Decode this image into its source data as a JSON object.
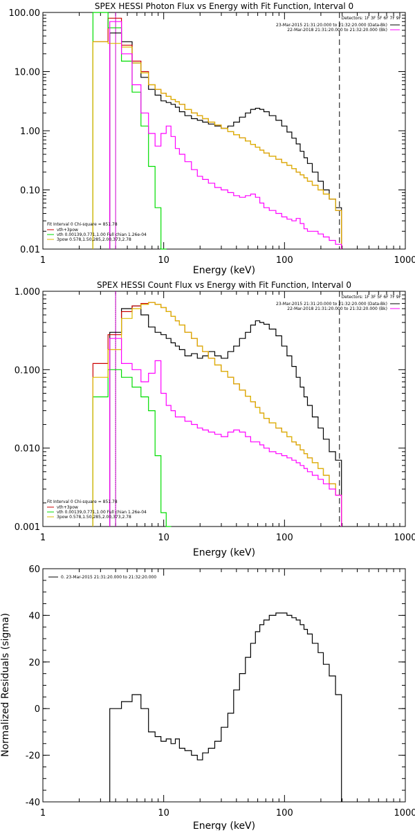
{
  "chart_data": [
    {
      "type": "line",
      "title": "SPEX HESSI Photon Flux vs Energy with Fit Function, Interval 0",
      "xlabel": "Energy (keV)",
      "ylabel": "",
      "xscale": "log",
      "yscale": "log",
      "xlim": [
        1,
        1000
      ],
      "ylim": [
        0.01,
        100
      ],
      "grid": false,
      "x_ticks": [
        "1",
        "10",
        "100",
        "1000"
      ],
      "y_ticks": [
        "100.00",
        "10.00",
        "1.00",
        "0.10",
        "0.01"
      ],
      "legend_header": "Detectors: 1F 3F 5F 6F 7F 9F",
      "legend_right": [
        {
          "text": "23-Mar-2015 21:31:20.000 to 21:32:20.000 (Data-Bk)",
          "color": "#000000"
        },
        {
          "text": "22-Mar-2018 21:31:20.000 to 21:32:20.000 (Bk)",
          "color": "#ff00ff"
        }
      ],
      "legend_left_header": "Fit Interval 0   Chi-square = 851.78",
      "legend_left": [
        {
          "text": "vth+3pow",
          "color": "#cc0000"
        },
        {
          "text": "vth 0.00139,0.771,1.00   Full chian 1.26e-04",
          "color": "#00dd00"
        },
        {
          "text": "3pow 0.578,1.50,285,2.00,373,2.78",
          "color": "#ddbb00"
        }
      ],
      "vlines": [
        {
          "x": 4,
          "color": "#cc00cc",
          "style": "solid"
        },
        {
          "x": 285,
          "color": "#000000",
          "style": "dashed"
        }
      ],
      "series": [
        {
          "name": "Data-Bk",
          "color": "#000000",
          "x": [
            4,
            5,
            6,
            7,
            8,
            9,
            10,
            11,
            12,
            13,
            14,
            16,
            18,
            20,
            22,
            25,
            28,
            32,
            36,
            40,
            45,
            50,
            55,
            60,
            65,
            70,
            80,
            90,
            100,
            110,
            120,
            130,
            140,
            150,
            160,
            180,
            200,
            220,
            250,
            280
          ],
          "values": [
            45,
            32,
            14,
            8,
            5,
            4,
            3.2,
            3,
            2.8,
            2.5,
            2.1,
            1.8,
            1.6,
            1.5,
            1.4,
            1.3,
            1.2,
            1.1,
            1.2,
            1.4,
            1.7,
            2,
            2.3,
            2.4,
            2.3,
            2.1,
            1.8,
            1.5,
            1.2,
            0.95,
            0.75,
            0.6,
            0.45,
            0.35,
            0.28,
            0.2,
            0.14,
            0.1,
            0.07,
            0.05
          ]
        },
        {
          "name": "vth+3pow",
          "color": "#cc0000",
          "x": [
            3,
            4,
            5,
            6,
            7,
            8,
            9,
            10,
            11,
            12,
            13,
            14,
            16,
            18,
            20,
            22,
            25,
            28,
            32,
            36,
            40,
            45,
            50,
            55,
            60,
            65,
            70,
            80,
            90,
            100,
            110,
            120,
            130,
            140,
            150,
            160,
            180,
            200,
            220,
            250,
            280
          ],
          "values": [
            32,
            80,
            28,
            15,
            10,
            6,
            5,
            4.3,
            3.8,
            3.4,
            3.1,
            2.8,
            2.3,
            2,
            1.8,
            1.6,
            1.4,
            1.25,
            1.1,
            0.97,
            0.86,
            0.76,
            0.67,
            0.59,
            0.53,
            0.47,
            0.42,
            0.37,
            0.33,
            0.29,
            0.26,
            0.23,
            0.2,
            0.18,
            0.16,
            0.14,
            0.12,
            0.1,
            0.085,
            0.07,
            0.045
          ]
        },
        {
          "name": "vth",
          "color": "#00dd00",
          "x": [
            3,
            4,
            5,
            6,
            7,
            8,
            9,
            10
          ],
          "values": [
            100,
            55,
            15,
            4.5,
            1.2,
            0.25,
            0.05,
            0.01
          ]
        },
        {
          "name": "3pow",
          "color": "#ddbb00",
          "x": [
            3,
            4,
            5,
            6,
            7,
            8,
            9,
            10,
            11,
            12,
            13,
            14,
            16,
            18,
            20,
            22,
            25,
            28,
            32,
            36,
            40,
            45,
            50,
            55,
            60,
            65,
            70,
            80,
            90,
            100,
            110,
            120,
            130,
            140,
            150,
            160,
            180,
            200,
            220,
            250,
            280
          ],
          "values": [
            32,
            30,
            26,
            14,
            9.5,
            6,
            5,
            4.3,
            3.8,
            3.4,
            3.1,
            2.8,
            2.3,
            2,
            1.8,
            1.6,
            1.4,
            1.25,
            1.1,
            0.97,
            0.86,
            0.76,
            0.67,
            0.59,
            0.53,
            0.47,
            0.42,
            0.37,
            0.33,
            0.29,
            0.26,
            0.23,
            0.2,
            0.18,
            0.16,
            0.14,
            0.12,
            0.1,
            0.085,
            0.07,
            0.045
          ]
        },
        {
          "name": "Bk",
          "color": "#ff00ff",
          "x": [
            4,
            5,
            6,
            7,
            8,
            9,
            10,
            11,
            12,
            13,
            14,
            16,
            18,
            20,
            22,
            25,
            28,
            32,
            36,
            40,
            45,
            50,
            55,
            60,
            65,
            70,
            80,
            90,
            100,
            110,
            120,
            130,
            140,
            150,
            160,
            180,
            200,
            220,
            250,
            280
          ],
          "values": [
            70,
            20,
            6,
            2,
            0.9,
            0.55,
            0.9,
            1.2,
            0.8,
            0.5,
            0.4,
            0.3,
            0.22,
            0.17,
            0.15,
            0.13,
            0.11,
            0.1,
            0.09,
            0.08,
            0.075,
            0.08,
            0.085,
            0.075,
            0.06,
            0.05,
            0.045,
            0.04,
            0.035,
            0.032,
            0.03,
            0.033,
            0.027,
            0.022,
            0.02,
            0.02,
            0.018,
            0.016,
            0.014,
            0.012
          ]
        }
      ]
    },
    {
      "type": "line",
      "title": "SPEX HESSI Count Flux vs Energy with Fit Function, Interval 0",
      "xlabel": "Energy (keV)",
      "ylabel": "",
      "xscale": "log",
      "yscale": "log",
      "xlim": [
        1,
        1000
      ],
      "ylim": [
        0.001,
        1
      ],
      "grid": false,
      "x_ticks": [
        "1",
        "10",
        "100",
        "1000"
      ],
      "y_ticks": [
        "1.000",
        "0.100",
        "0.010",
        "0.001"
      ],
      "legend_header": "Detectors: 1F 3F 5F 6F 7F 9F",
      "legend_right": [
        {
          "text": "23-Mar-2015 21:31:20.000 to 21:32:20.000 (Data-Bk)",
          "color": "#000000"
        },
        {
          "text": "22-Mar-2018 21:31:20.000 to 21:32:20.000 (Bk)",
          "color": "#ff00ff"
        }
      ],
      "legend_left_header": "Fit Interval 0   Chi-square = 851.78",
      "legend_left": [
        {
          "text": "vth+3pow",
          "color": "#cc0000"
        },
        {
          "text": "vth 0.00139,0.771,1.00   Full chian 1.26e-04",
          "color": "#00dd00"
        },
        {
          "text": "3pow 0.578,1.50,285,2.00,373,2.78",
          "color": "#ddbb00"
        }
      ],
      "vlines": [
        {
          "x": 4,
          "color": "#000000",
          "style": "dotted"
        },
        {
          "x": 4,
          "color": "#cc00cc",
          "style": "solid"
        },
        {
          "x": 285,
          "color": "#000000",
          "style": "dashed"
        }
      ],
      "series": [
        {
          "name": "Data-Bk",
          "color": "#000000",
          "x": [
            4,
            5,
            6,
            7,
            8,
            9,
            10,
            11,
            12,
            13,
            14,
            16,
            18,
            20,
            22,
            25,
            28,
            32,
            36,
            40,
            45,
            50,
            55,
            60,
            65,
            70,
            80,
            90,
            100,
            110,
            120,
            130,
            140,
            150,
            160,
            180,
            200,
            220,
            250,
            280
          ],
          "values": [
            0.3,
            0.6,
            0.65,
            0.5,
            0.35,
            0.3,
            0.28,
            0.25,
            0.22,
            0.2,
            0.18,
            0.15,
            0.16,
            0.14,
            0.15,
            0.17,
            0.15,
            0.14,
            0.17,
            0.2,
            0.25,
            0.3,
            0.37,
            0.42,
            0.4,
            0.38,
            0.33,
            0.27,
            0.2,
            0.15,
            0.11,
            0.08,
            0.06,
            0.045,
            0.035,
            0.025,
            0.018,
            0.013,
            0.009,
            0.007
          ]
        },
        {
          "name": "vth+3pow",
          "color": "#cc0000",
          "x": [
            3,
            4,
            5,
            6,
            7,
            8,
            9,
            10,
            11,
            12,
            13,
            14,
            16,
            18,
            20,
            22,
            25,
            28,
            32,
            36,
            40,
            45,
            50,
            55,
            60,
            65,
            70,
            80,
            90,
            100,
            110,
            120,
            130,
            140,
            150,
            160,
            180,
            200,
            220,
            250,
            280
          ],
          "values": [
            0.12,
            0.28,
            0.55,
            0.65,
            0.7,
            0.72,
            0.68,
            0.62,
            0.55,
            0.48,
            0.42,
            0.37,
            0.3,
            0.25,
            0.2,
            0.17,
            0.14,
            0.115,
            0.095,
            0.08,
            0.066,
            0.055,
            0.046,
            0.039,
            0.033,
            0.028,
            0.024,
            0.021,
            0.018,
            0.016,
            0.014,
            0.012,
            0.011,
            0.0095,
            0.0085,
            0.0075,
            0.0065,
            0.0055,
            0.0045,
            0.0035,
            0.0025
          ]
        },
        {
          "name": "vth",
          "color": "#00dd00",
          "x": [
            3,
            4,
            5,
            6,
            7,
            8,
            9,
            10,
            11
          ],
          "values": [
            0.045,
            0.1,
            0.08,
            0.06,
            0.045,
            0.03,
            0.008,
            0.0015,
            0.001
          ]
        },
        {
          "name": "3pow",
          "color": "#ddbb00",
          "x": [
            3,
            4,
            5,
            6,
            7,
            8,
            9,
            10,
            11,
            12,
            13,
            14,
            16,
            18,
            20,
            22,
            25,
            28,
            32,
            36,
            40,
            45,
            50,
            55,
            60,
            65,
            70,
            80,
            90,
            100,
            110,
            120,
            130,
            140,
            150,
            160,
            180,
            200,
            220,
            250,
            280
          ],
          "values": [
            0.08,
            0.18,
            0.45,
            0.6,
            0.68,
            0.72,
            0.68,
            0.62,
            0.55,
            0.48,
            0.42,
            0.37,
            0.3,
            0.25,
            0.2,
            0.17,
            0.14,
            0.115,
            0.095,
            0.08,
            0.066,
            0.055,
            0.046,
            0.039,
            0.033,
            0.028,
            0.024,
            0.021,
            0.018,
            0.016,
            0.014,
            0.012,
            0.011,
            0.0095,
            0.0085,
            0.0075,
            0.0065,
            0.0055,
            0.0045,
            0.0035,
            0.0025
          ]
        },
        {
          "name": "Bk",
          "color": "#ff00ff",
          "x": [
            4,
            5,
            6,
            7,
            8,
            9,
            10,
            11,
            12,
            13,
            14,
            16,
            18,
            20,
            22,
            25,
            28,
            32,
            36,
            40,
            45,
            50,
            55,
            60,
            65,
            70,
            80,
            90,
            100,
            110,
            120,
            130,
            140,
            150,
            160,
            180,
            200,
            220,
            250,
            280
          ],
          "values": [
            0.25,
            0.12,
            0.1,
            0.07,
            0.09,
            0.13,
            0.05,
            0.035,
            0.03,
            0.025,
            0.025,
            0.022,
            0.02,
            0.018,
            0.017,
            0.016,
            0.015,
            0.014,
            0.016,
            0.017,
            0.016,
            0.014,
            0.012,
            0.012,
            0.011,
            0.01,
            0.009,
            0.0085,
            0.008,
            0.0075,
            0.007,
            0.0065,
            0.006,
            0.0055,
            0.005,
            0.0045,
            0.004,
            0.0035,
            0.003,
            0.0025
          ]
        }
      ]
    },
    {
      "type": "line",
      "title": "",
      "xlabel": "Energy (keV)",
      "ylabel": "Normalized Residuals (sigma)",
      "xscale": "log",
      "yscale": "linear",
      "xlim": [
        1,
        1000
      ],
      "ylim": [
        -40,
        60
      ],
      "grid": false,
      "x_ticks": [
        "1",
        "10",
        "100",
        "1000"
      ],
      "y_ticks": [
        "60",
        "40",
        "20",
        "0",
        "-20",
        "-40"
      ],
      "legend_header": "",
      "legend_right": [],
      "legend_left_header": "",
      "legend_left": [
        {
          "text": "0. 23-Mar-2015 21:31:20.000 to 21:32:20.000",
          "color": "#000000"
        }
      ],
      "vlines": [],
      "series": [
        {
          "name": "0. 23-Mar-2015 21:31:20.000 to 21:32:20.000",
          "color": "#000000",
          "x": [
            4,
            5,
            6,
            7,
            8,
            9,
            10,
            11,
            12,
            13,
            14,
            16,
            18,
            20,
            22,
            25,
            28,
            32,
            36,
            40,
            45,
            50,
            55,
            60,
            65,
            70,
            80,
            90,
            100,
            110,
            120,
            130,
            140,
            150,
            160,
            180,
            200,
            220,
            250,
            280
          ],
          "values": [
            0,
            3,
            6,
            0,
            -10,
            -12,
            -14,
            -13,
            -15,
            -13,
            -17,
            -18,
            -20,
            -22,
            -19,
            -17,
            -14,
            -8,
            -2,
            8,
            15,
            22,
            28,
            33,
            36,
            38,
            40,
            41,
            41,
            40,
            39,
            38,
            36,
            34,
            32,
            28,
            24,
            19,
            14,
            6
          ]
        }
      ]
    }
  ]
}
